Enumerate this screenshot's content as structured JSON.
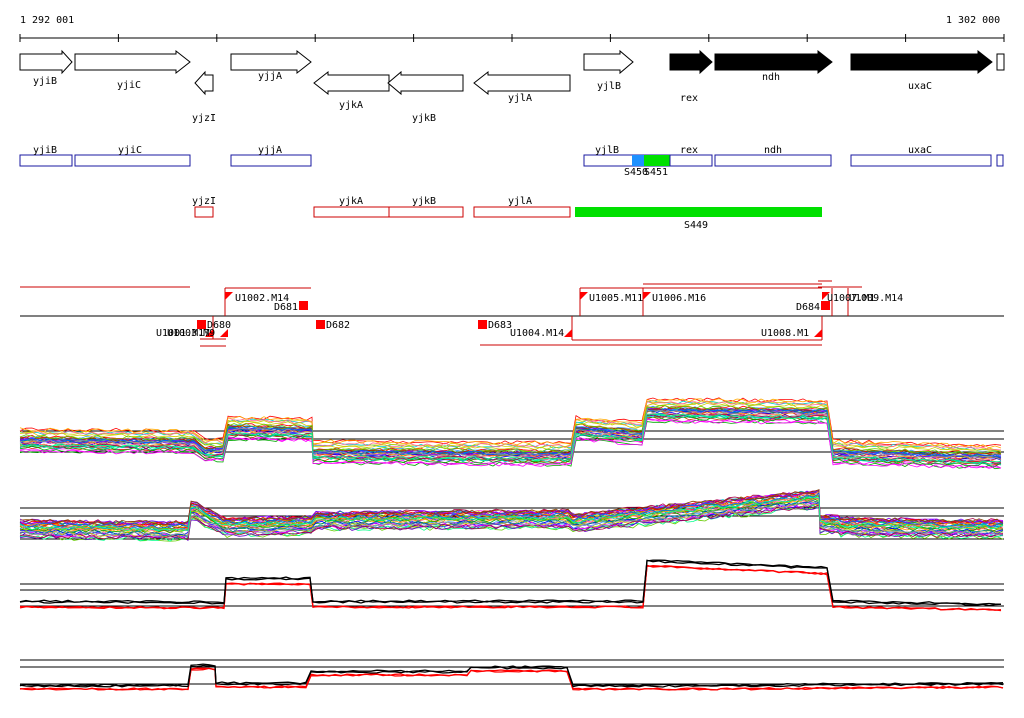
{
  "ruler": {
    "start_label": "1 292 001",
    "end_label": "1 302 000"
  },
  "genes": {
    "forward": [
      "yjiB",
      "yjiC",
      "yjjA",
      "yjlB"
    ],
    "forward_filled": [
      "rex",
      "ndh",
      "uxaC"
    ],
    "reverse": [
      "yjzI",
      "yjkA",
      "yjkB",
      "yjlA"
    ]
  },
  "segments": {
    "blue_track": [
      "yjiB",
      "yjiC",
      "yjjA",
      "yjlB",
      "rex",
      "ndh",
      "uxaC"
    ],
    "blue_track_labels": [
      "S450",
      "S451"
    ],
    "red_track": [
      "yjzI",
      "yjkA",
      "yjkB",
      "yjlA"
    ],
    "highlight_label": "S449"
  },
  "transcripts": {
    "up_labels": [
      "U1002.M14",
      "U1005.M11",
      "U1006.M16",
      "U1007.M1",
      "U1009.M14"
    ],
    "down_labels": [
      "U1001.M17",
      "U1003.M9",
      "U1004.M14",
      "U1008.M1"
    ],
    "downshift_labels": [
      "D680",
      "D681",
      "D682",
      "D683",
      "D684"
    ]
  },
  "colors": {
    "blue_box": "#1a1aa0",
    "red_box": "#cc0000",
    "highlight_green": "#00e000",
    "highlight_blue": "#1e90ff",
    "marker_red": "#ff0000"
  }
}
